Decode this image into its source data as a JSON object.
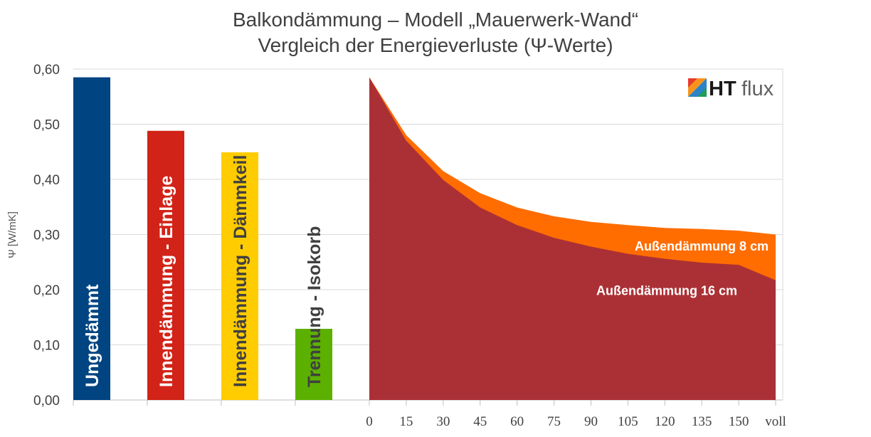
{
  "chart_data": {
    "type": "bar",
    "title": "Balkondämmung – Modell „Mauerwerk-Wand“",
    "subtitle": "Vergleich der Energieverluste (Ψ-Werte)",
    "ylabel": "Ψ [W/mK]",
    "ylim": [
      0,
      0.6
    ],
    "yticks": [
      "0,00",
      "0,10",
      "0,20",
      "0,30",
      "0,40",
      "0,50",
      "0,60"
    ],
    "grid": true,
    "logo": {
      "part1": "HT",
      "part2": "flux"
    },
    "bars": [
      {
        "label": "Ungedämmt",
        "value": 0.585,
        "color": "#004481",
        "text_color": "#ffffff"
      },
      {
        "label": "Innendämmung - Einlage",
        "value": 0.488,
        "color": "#d22318",
        "text_color": "#ffffff"
      },
      {
        "label": "Innendämmung - Dämmkeil",
        "value": 0.449,
        "color": "#ffcc00",
        "text_color": "#404040"
      },
      {
        "label": "Trennung - Isokorb",
        "value": 0.129,
        "color": "#5bb000",
        "text_color": "#404040"
      }
    ],
    "area": {
      "x": [
        "0",
        "15",
        "30",
        "45",
        "60",
        "75",
        "90",
        "105",
        "120",
        "135",
        "150",
        "voll"
      ],
      "series": [
        {
          "name": "Außendämmung 8 cm",
          "color": "#ff6d00",
          "values": [
            0.585,
            0.48,
            0.415,
            0.375,
            0.349,
            0.333,
            0.323,
            0.317,
            0.312,
            0.31,
            0.307,
            0.3
          ]
        },
        {
          "name": "Außendämmung 16 cm",
          "color": "#ab3035",
          "values": [
            0.585,
            0.47,
            0.399,
            0.349,
            0.317,
            0.294,
            0.278,
            0.265,
            0.256,
            0.249,
            0.245,
            0.217
          ]
        }
      ]
    }
  }
}
